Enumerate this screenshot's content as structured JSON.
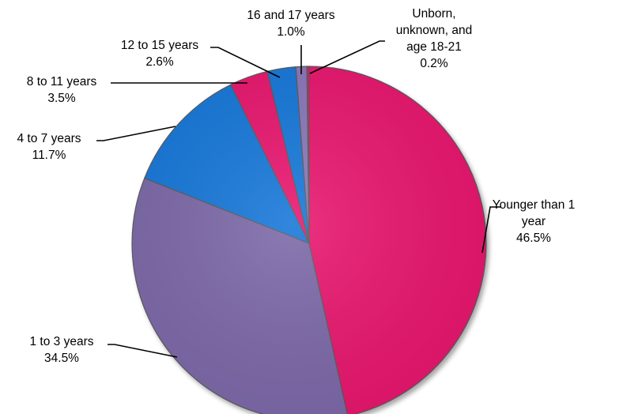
{
  "chart_data": {
    "type": "pie",
    "title": "",
    "unit": "%",
    "start": "12 o'clock",
    "direction": "clockwise",
    "legend": "none (leader-line labels)",
    "slices": [
      {
        "label_lines": [
          "Younger than 1",
          "year"
        ],
        "value": 46.5,
        "value_text": "46.5%",
        "color": "#e8176e"
      },
      {
        "label_lines": [
          "1 to 3 years"
        ],
        "value": 34.5,
        "value_text": "34.5%",
        "color": "#7b67a8"
      },
      {
        "label_lines": [
          "4 to 7 years"
        ],
        "value": 11.7,
        "value_text": "11.7%",
        "color": "#1877d8"
      },
      {
        "label_lines": [
          "8 to 11 years"
        ],
        "value": 3.5,
        "value_text": "3.5%",
        "color": "#e8176e"
      },
      {
        "label_lines": [
          "12 to 15 years"
        ],
        "value": 2.6,
        "value_text": "2.6%",
        "color": "#1877d8"
      },
      {
        "label_lines": [
          "16 and 17 years"
        ],
        "value": 1.0,
        "value_text": "1.0%",
        "color": "#8a77b9"
      },
      {
        "label_lines": [
          "Unborn,",
          "unknown, and",
          "age 18-21"
        ],
        "value": 0.2,
        "value_text": "0.2%",
        "color": "#e8176e"
      }
    ]
  }
}
